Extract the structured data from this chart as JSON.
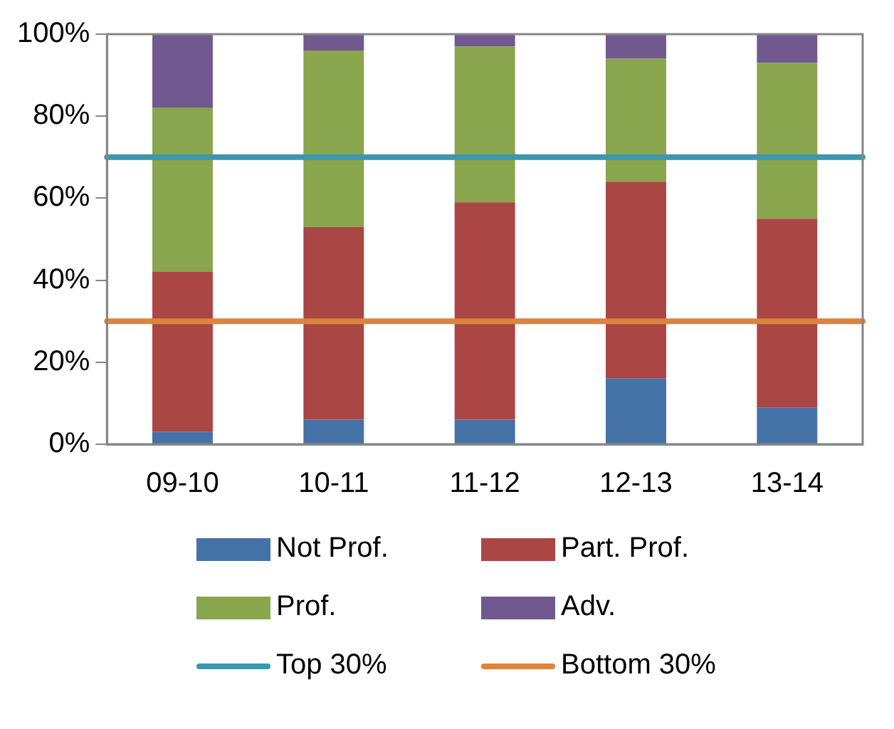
{
  "chart_data": {
    "type": "bar",
    "stacked": true,
    "categories": [
      "09-10",
      "10-11",
      "11-12",
      "12-13",
      "13-14"
    ],
    "series": [
      {
        "name": "Not Prof.",
        "color": "#4572a7",
        "values": [
          3,
          6,
          6,
          16,
          9
        ]
      },
      {
        "name": "Part. Prof.",
        "color": "#aa4643",
        "values": [
          39,
          47,
          53,
          48,
          46
        ]
      },
      {
        "name": "Prof.",
        "color": "#89a54e",
        "values": [
          40,
          43,
          38,
          30,
          38
        ]
      },
      {
        "name": "Adv.",
        "color": "#71588f",
        "values": [
          18,
          4,
          3,
          6,
          7
        ]
      }
    ],
    "ylim": [
      0,
      100
    ],
    "yticks": [
      {
        "value": 0,
        "label": "0%"
      },
      {
        "value": 20,
        "label": "20%"
      },
      {
        "value": 40,
        "label": "40%"
      },
      {
        "value": 60,
        "label": "60%"
      },
      {
        "value": 80,
        "label": "80%"
      },
      {
        "value": 100,
        "label": "100%"
      }
    ],
    "ref_lines": [
      {
        "axis": "y",
        "value": 70,
        "label": "Top 30%",
        "color": "#3d96ae"
      },
      {
        "axis": "y",
        "value": 30,
        "label": "Bottom 30%",
        "color": "#db843d"
      }
    ],
    "grid": false,
    "legend": "bottom"
  }
}
